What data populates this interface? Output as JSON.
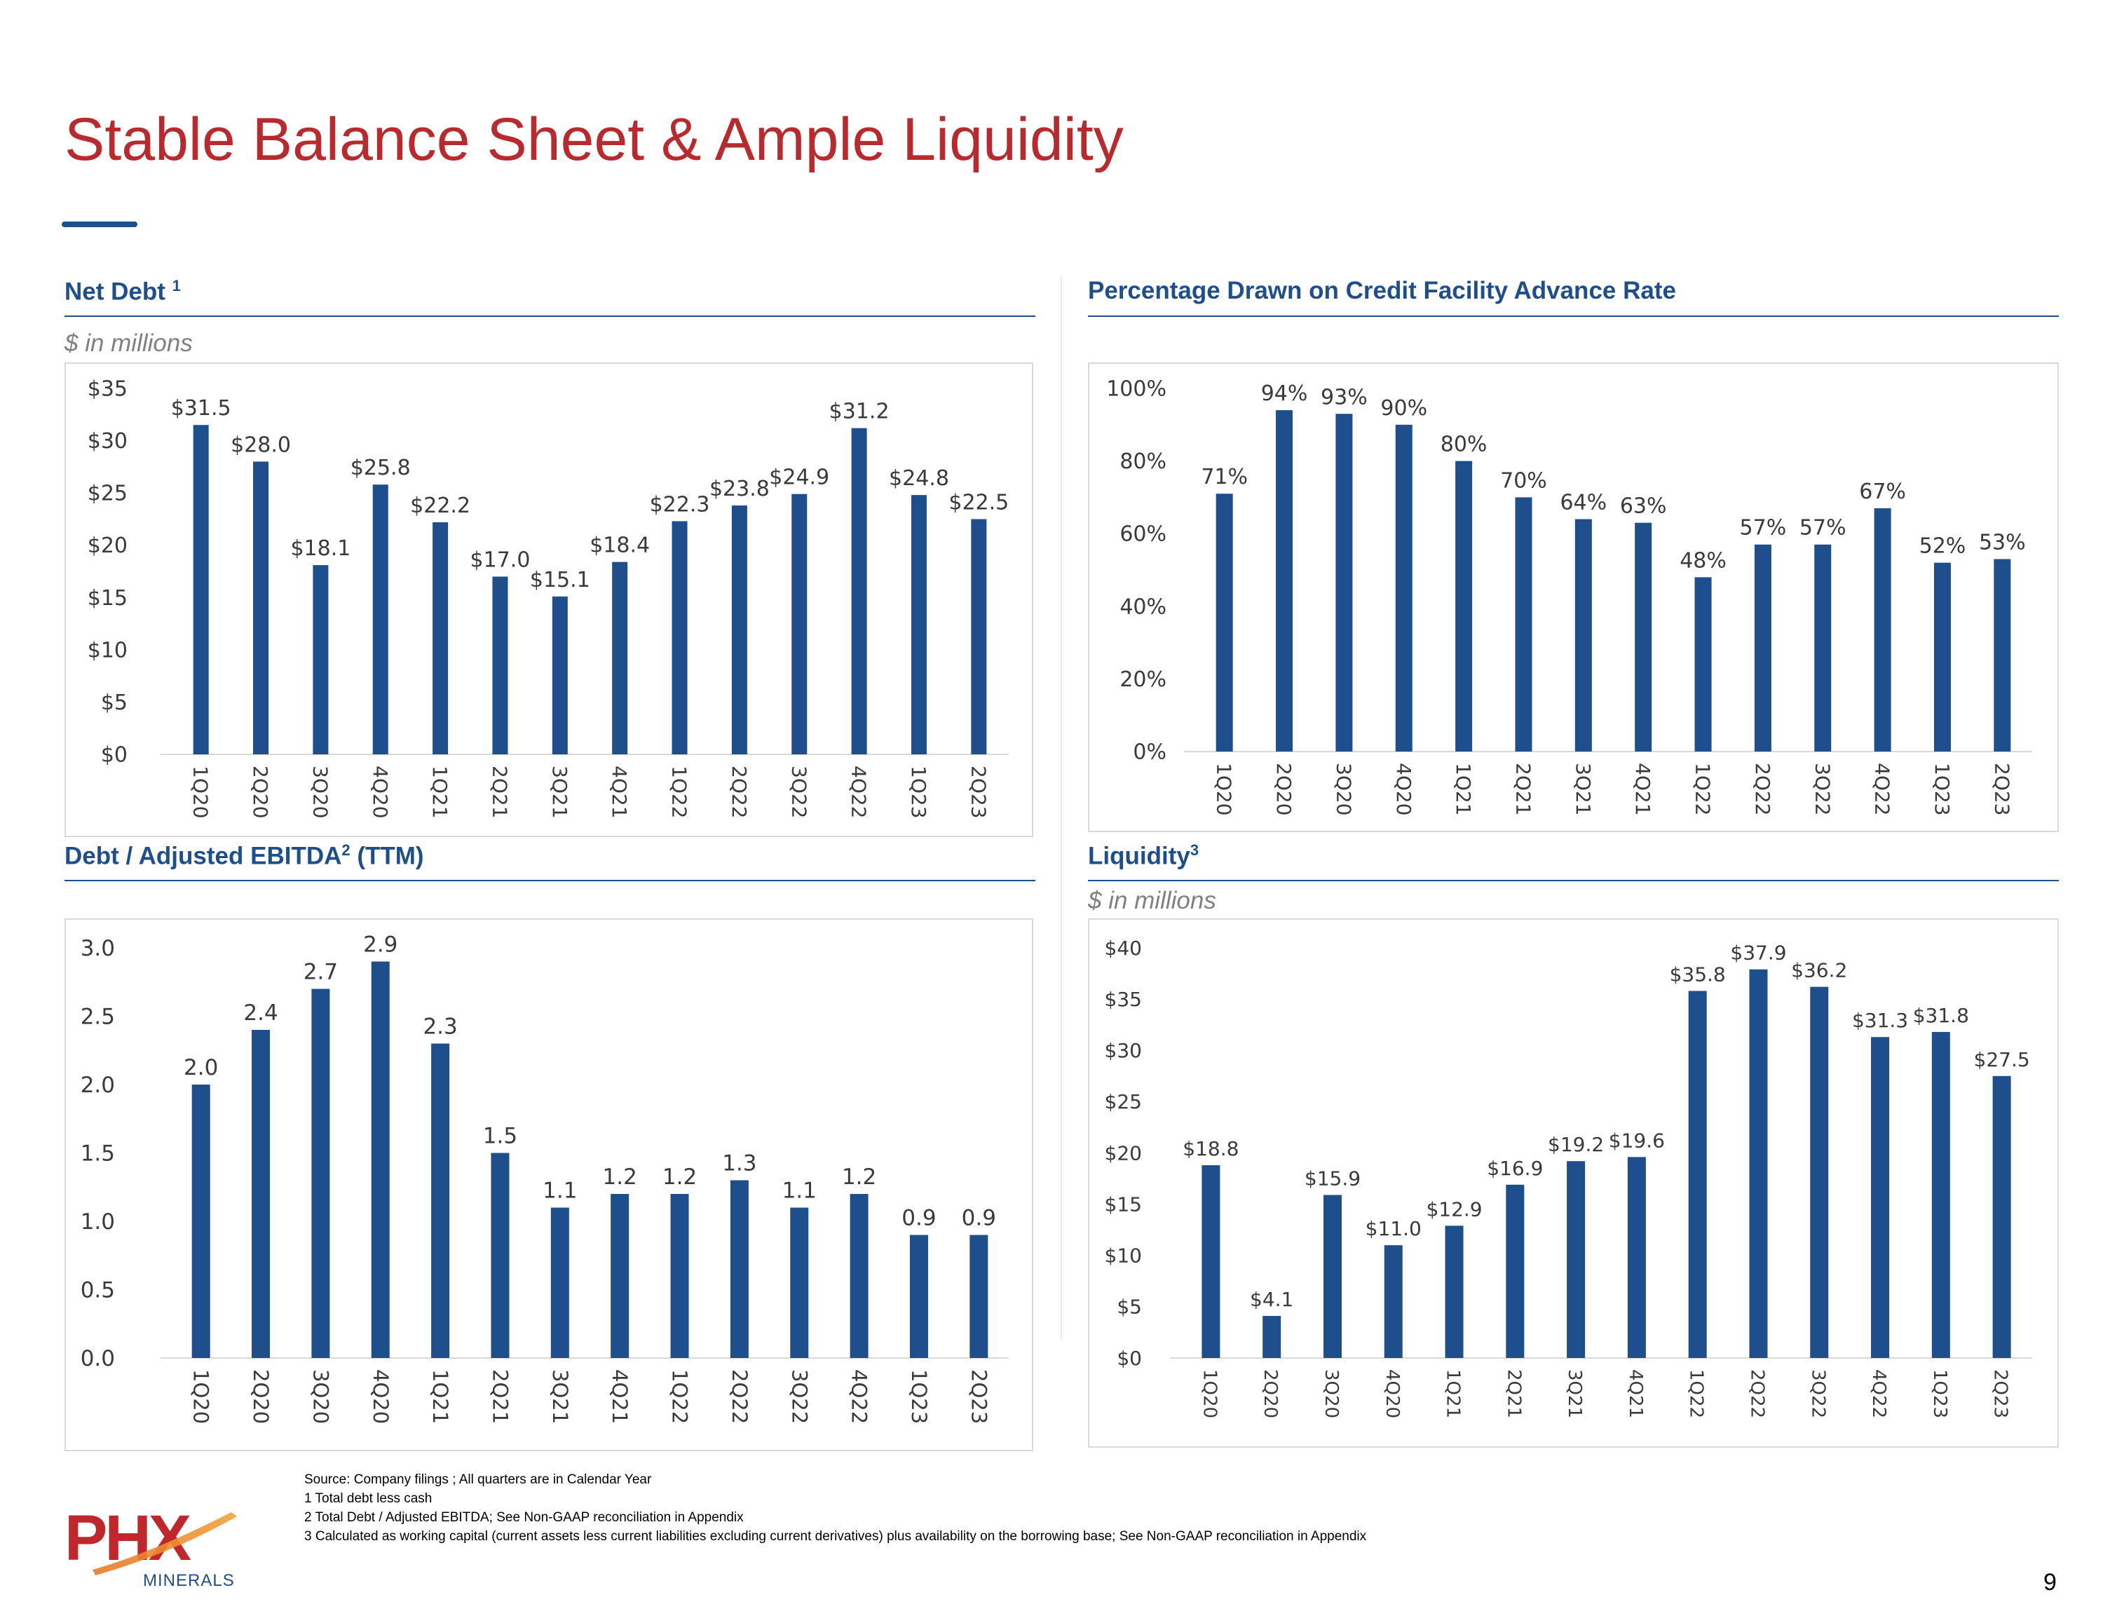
{
  "slide": {
    "title": "Stable Balance Sheet & Ample Liquidity",
    "page_number": "9",
    "logo": {
      "name": "PHX",
      "sub": "MINERALS",
      "colors": [
        "#c0272d",
        "#e8782a"
      ]
    },
    "footnotes": [
      "Source: Company filings ; All quarters are in Calendar Year",
      "1 Total debt less cash",
      "2 Total Debt / Adjusted EBITDA;  See Non-GAAP reconciliation in Appendix",
      "3 Calculated as working capital (current assets less current liabilities excluding current derivatives) plus availability on the borrowing base; See Non-GAAP reconciliation in Appendix"
    ]
  },
  "sections": {
    "net_debt": {
      "title": "Net Debt",
      "sup": "1",
      "unit": "$ in millions"
    },
    "pct_drawn": {
      "title": "Percentage Drawn on Credit Facility Advance Rate",
      "sup": ""
    },
    "debt_ebitda": {
      "title_pre": "Debt / Adjusted EBITDA",
      "sup": "2",
      "title_post": " (TTM)"
    },
    "liquidity": {
      "title": "Liquidity",
      "sup": "3",
      "unit": "$ in millions"
    }
  },
  "chart_data": [
    {
      "id": "net_debt",
      "type": "bar",
      "categories": [
        "1Q20",
        "2Q20",
        "3Q20",
        "4Q20",
        "1Q21",
        "2Q21",
        "3Q21",
        "4Q21",
        "1Q22",
        "2Q22",
        "3Q22",
        "4Q22",
        "1Q23",
        "2Q23"
      ],
      "values": [
        31.5,
        28.0,
        18.1,
        25.8,
        22.2,
        17.0,
        15.1,
        18.4,
        22.3,
        23.8,
        24.9,
        31.2,
        24.8,
        22.5
      ],
      "value_labels": [
        "$31.5",
        "$28.0",
        "$18.1",
        "$25.8",
        "$22.2",
        "$17.0",
        "$15.1",
        "$18.4",
        "$22.3",
        "$23.8",
        "$24.9",
        "$31.2",
        "$24.8",
        "$22.5"
      ],
      "ylim": [
        0,
        35
      ],
      "yticks": [
        0,
        5,
        10,
        15,
        20,
        25,
        30,
        35
      ],
      "ytick_labels": [
        "$0",
        "$5",
        "$10",
        "$15",
        "$20",
        "$25",
        "$30",
        "$35"
      ],
      "bar_color": "#1f4e8c"
    },
    {
      "id": "pct_drawn",
      "type": "bar",
      "categories": [
        "1Q20",
        "2Q20",
        "3Q20",
        "4Q20",
        "1Q21",
        "2Q21",
        "3Q21",
        "4Q21",
        "1Q22",
        "2Q22",
        "3Q22",
        "4Q22",
        "1Q23",
        "2Q23"
      ],
      "values": [
        71,
        94,
        93,
        90,
        80,
        70,
        64,
        63,
        48,
        57,
        57,
        67,
        52,
        53
      ],
      "value_labels": [
        "71%",
        "94%",
        "93%",
        "90%",
        "80%",
        "70%",
        "64%",
        "63%",
        "48%",
        "57%",
        "57%",
        "67%",
        "52%",
        "53%"
      ],
      "ylim": [
        0,
        100
      ],
      "yticks": [
        0,
        20,
        40,
        60,
        80,
        100
      ],
      "ytick_labels": [
        "0%",
        "20%",
        "40%",
        "60%",
        "80%",
        "100%"
      ],
      "bar_color": "#1f4e8c"
    },
    {
      "id": "debt_ebitda",
      "type": "bar",
      "categories": [
        "1Q20",
        "2Q20",
        "3Q20",
        "4Q20",
        "1Q21",
        "2Q21",
        "3Q21",
        "4Q21",
        "1Q22",
        "2Q22",
        "3Q22",
        "4Q22",
        "1Q23",
        "2Q23"
      ],
      "values": [
        2.0,
        2.4,
        2.7,
        2.9,
        2.3,
        1.5,
        1.1,
        1.2,
        1.2,
        1.3,
        1.1,
        1.2,
        0.9,
        0.9
      ],
      "value_labels": [
        "2.0",
        "2.4",
        "2.7",
        "2.9",
        "2.3",
        "1.5",
        "1.1",
        "1.2",
        "1.2",
        "1.3",
        "1.1",
        "1.2",
        "0.9",
        "0.9"
      ],
      "ylim": [
        0,
        3.0
      ],
      "yticks": [
        0,
        0.5,
        1.0,
        1.5,
        2.0,
        2.5,
        3.0
      ],
      "ytick_labels": [
        "0.0",
        "0.5",
        "1.0",
        "1.5",
        "2.0",
        "2.5",
        "3.0"
      ],
      "bar_color": "#1f4e8c"
    },
    {
      "id": "liquidity",
      "type": "bar",
      "categories": [
        "1Q20",
        "2Q20",
        "3Q20",
        "4Q20",
        "1Q21",
        "2Q21",
        "3Q21",
        "4Q21",
        "1Q22",
        "2Q22",
        "3Q22",
        "4Q22",
        "1Q23",
        "2Q23"
      ],
      "values": [
        18.8,
        4.1,
        15.9,
        11.0,
        12.9,
        16.9,
        19.2,
        19.6,
        35.8,
        37.9,
        36.2,
        31.3,
        31.8,
        27.5
      ],
      "value_labels": [
        "$18.8",
        "$4.1",
        "$15.9",
        "$11.0",
        "$12.9",
        "$16.9",
        "$19.2",
        "$19.6",
        "$35.8",
        "$37.9",
        "$36.2",
        "$31.3",
        "$31.8",
        "$27.5"
      ],
      "ylim": [
        0,
        40
      ],
      "yticks": [
        0,
        5,
        10,
        15,
        20,
        25,
        30,
        35,
        40
      ],
      "ytick_labels": [
        "$0",
        "$5",
        "$10",
        "$15",
        "$20",
        "$25",
        "$30",
        "$35",
        "$40"
      ],
      "bar_color": "#1f4e8c"
    }
  ]
}
